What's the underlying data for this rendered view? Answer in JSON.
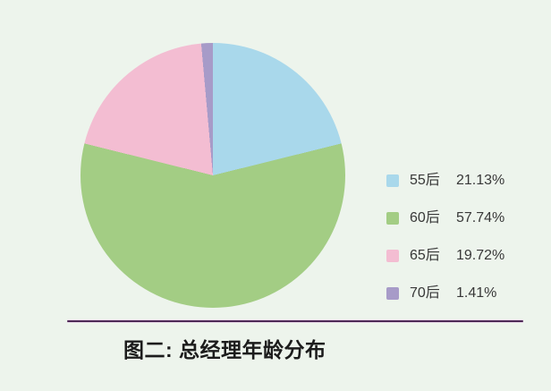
{
  "page": {
    "background": "#edf4ec"
  },
  "chart_data": {
    "type": "pie",
    "title": "图二: 总经理年龄分布",
    "categories": [
      "55后",
      "60后",
      "65后",
      "70后"
    ],
    "values": [
      21.13,
      57.74,
      19.72,
      1.41
    ],
    "value_labels": [
      "21.13%",
      "57.74%",
      "19.72%",
      "1.41%"
    ],
    "colors": [
      "#a9d8eb",
      "#a3cd84",
      "#f3bdd2",
      "#a79bc8"
    ],
    "legend_position": "right",
    "start_angle_deg": 0,
    "direction": "clockwise",
    "grid": false
  },
  "legend": {
    "text_color": "#383838"
  },
  "separator": {
    "color": "#4e2a57",
    "halo_color": "#e9d8e8"
  },
  "caption": {
    "color": "#1c1c1c"
  }
}
